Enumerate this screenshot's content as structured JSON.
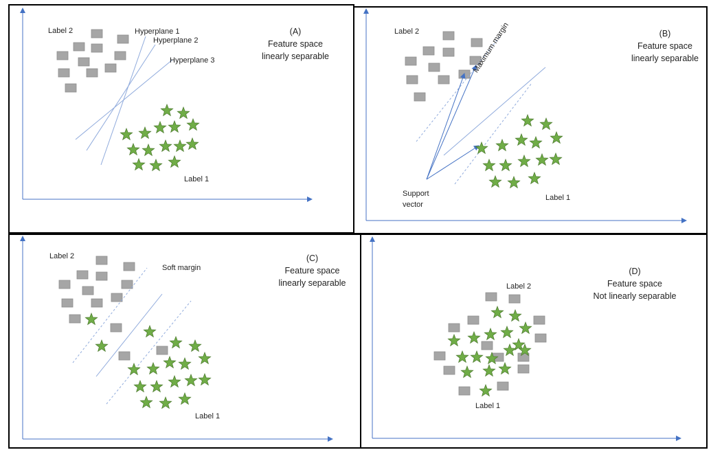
{
  "panels": {
    "a": {
      "letter": "(A)",
      "caption": [
        "Feature space",
        "linearly separable"
      ],
      "label_square": "Label 2",
      "label_star": "Label 1",
      "hyperplanes": [
        "Hyperplane 1",
        "Hyperplane 2",
        "Hyperplane 3"
      ]
    },
    "b": {
      "letter": "(B)",
      "caption": [
        "Feature space",
        "linearly separable"
      ],
      "label_square": "Label 2",
      "label_star": "Label 1",
      "margin_label": "Maximum margin",
      "support_vector": [
        "Support",
        "vector"
      ]
    },
    "c": {
      "letter": "(C)",
      "caption": [
        "Feature space",
        "linearly separable"
      ],
      "label_square": "Label 2",
      "label_star": "Label 1",
      "margin_label": "Soft margin"
    },
    "d": {
      "letter": "(D)",
      "caption": [
        "Feature space",
        "Not linearly separable"
      ],
      "label_square": "Label 2",
      "label_star": "Label 1"
    }
  },
  "colors": {
    "square_fill": "#a6a6a6",
    "square_stroke": "#8c8c8c",
    "star_fill": "#70ad47",
    "star_stroke": "#507e32",
    "axis": "#4472c4",
    "line": "#8faadc"
  }
}
